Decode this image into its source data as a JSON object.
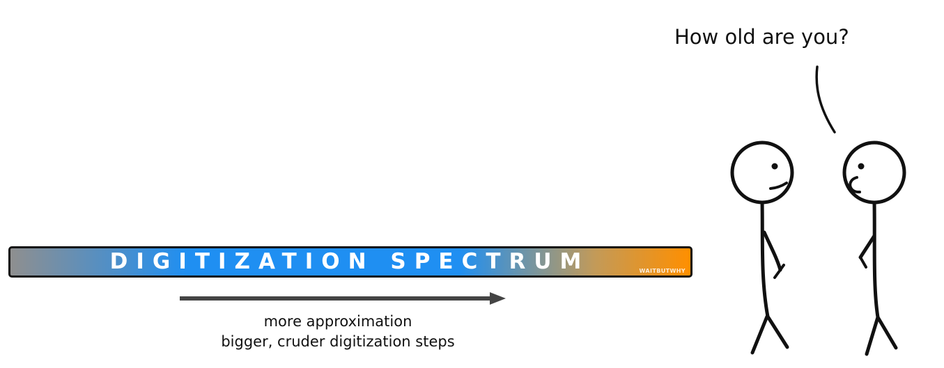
{
  "diagram": {
    "spectrum": {
      "title": "DIGITIZATION SPECTRUM",
      "watermark": "WAITBUTWHY",
      "colors": {
        "gray": "#8f8f8f",
        "blue": "#1f8ff2",
        "orange": "#ff8f00",
        "outline": "#111111",
        "text": "#ffffff"
      }
    },
    "direction": {
      "arrow_icon": "right-arrow-icon",
      "line_1": "more approximation",
      "line_2": "bigger, cruder digitization steps"
    },
    "dialogue": {
      "question": "How old are you?",
      "speaker": "right-stick-figure",
      "listener": "left-stick-figure"
    }
  }
}
